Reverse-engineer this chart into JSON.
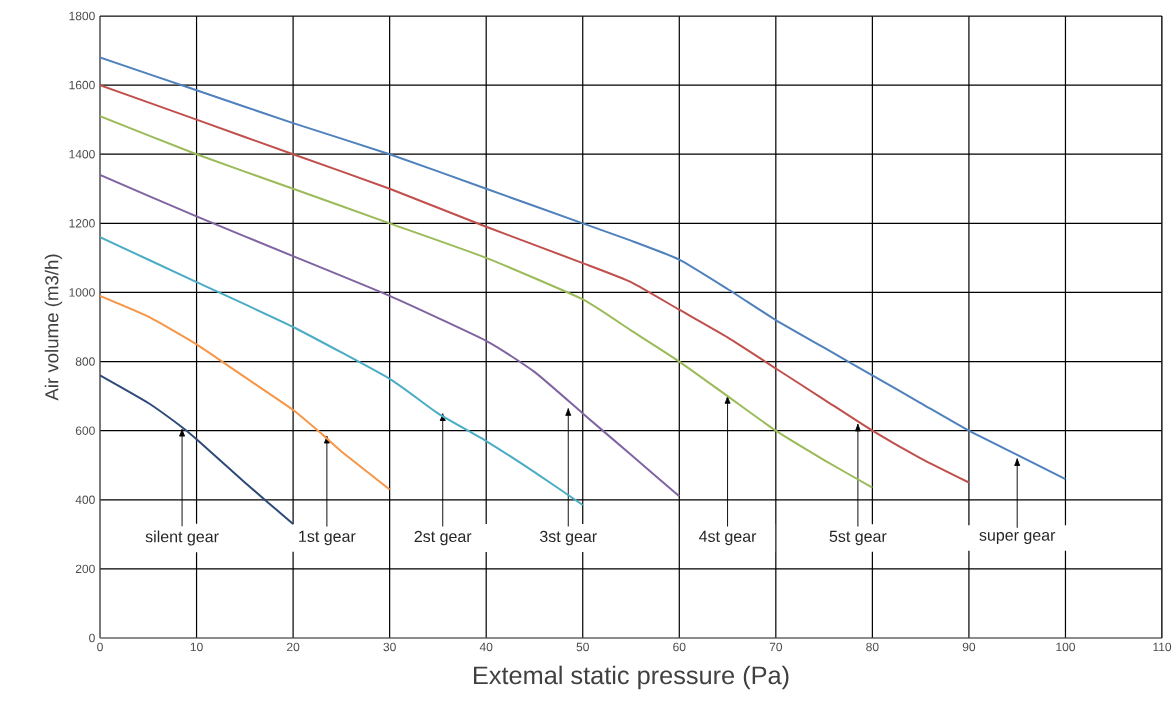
{
  "chart_data": {
    "type": "line",
    "xlabel": "Extemal static pressure (Pa)",
    "ylabel": "Air volume (m3/h)",
    "xlim": [
      0,
      110
    ],
    "ylim": [
      0,
      1800
    ],
    "xticks": [
      0,
      10,
      20,
      30,
      40,
      50,
      60,
      70,
      80,
      90,
      100,
      110
    ],
    "yticks": [
      0,
      200,
      400,
      600,
      800,
      1000,
      1200,
      1400,
      1600,
      1800
    ],
    "grid": true,
    "marker": "none",
    "line_style": "solid",
    "series": [
      {
        "color": "#2e4a7a",
        "x": [
          0,
          5,
          8.5,
          10,
          15,
          20
        ],
        "values": [
          760,
          680,
          610,
          575,
          450,
          330
        ]
      },
      {
        "color": "#f79646",
        "x": [
          0,
          5,
          10,
          15,
          20,
          23,
          25,
          30
        ],
        "values": [
          990,
          930,
          850,
          755,
          660,
          590,
          540,
          430
        ]
      },
      {
        "color": "#4bacc6",
        "x": [
          0,
          10,
          20,
          30,
          35,
          40,
          45,
          50
        ],
        "values": [
          1160,
          1030,
          900,
          750,
          650,
          570,
          480,
          385
        ]
      },
      {
        "color": "#8064a2",
        "x": [
          0,
          10,
          20,
          30,
          40,
          45,
          50,
          55,
          60
        ],
        "values": [
          1340,
          1220,
          1105,
          990,
          860,
          770,
          650,
          530,
          410
        ]
      },
      {
        "color": "#9bbb59",
        "x": [
          0,
          10,
          20,
          30,
          40,
          50,
          55,
          60,
          65,
          70,
          75,
          80
        ],
        "values": [
          1510,
          1400,
          1300,
          1200,
          1100,
          980,
          890,
          800,
          700,
          600,
          515,
          435
        ]
      },
      {
        "color": "#c0504d",
        "x": [
          0,
          10,
          20,
          30,
          40,
          50,
          55,
          60,
          65,
          70,
          75,
          80,
          85,
          90
        ],
        "values": [
          1600,
          1500,
          1400,
          1300,
          1190,
          1085,
          1030,
          950,
          870,
          780,
          690,
          600,
          520,
          450
        ]
      },
      {
        "color": "#4f81bd",
        "x": [
          0,
          10,
          20,
          30,
          40,
          50,
          55,
          60,
          65,
          70,
          75,
          80,
          85,
          90,
          95,
          100
        ],
        "values": [
          1680,
          1585,
          1490,
          1400,
          1300,
          1200,
          1150,
          1095,
          1010,
          920,
          840,
          760,
          680,
          600,
          530,
          460
        ]
      }
    ],
    "annotations": [
      {
        "text": "silent gear",
        "x": 8.5,
        "y": 610
      },
      {
        "text": "1st gear",
        "x": 23.5,
        "y": 590
      },
      {
        "text": "2st gear",
        "x": 35.5,
        "y": 655
      },
      {
        "text": "3st gear",
        "x": 48.5,
        "y": 670
      },
      {
        "text": "4st gear",
        "x": 65,
        "y": 705
      },
      {
        "text": "5st gear",
        "x": 78.5,
        "y": 625
      },
      {
        "text": "super gear",
        "x": 95,
        "y": 525
      }
    ]
  }
}
